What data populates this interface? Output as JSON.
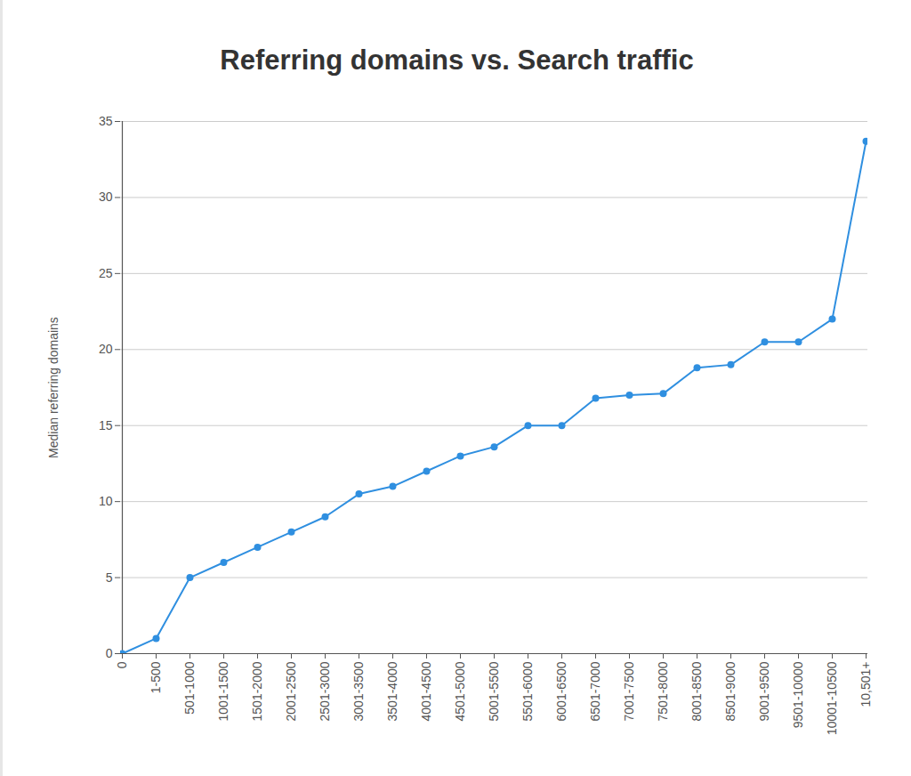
{
  "chart_data": {
    "type": "line",
    "title": "Referring domains vs. Search traffic",
    "y_label": "Median referring domains",
    "categories": [
      "0",
      "1-500",
      "501-1000",
      "1001-1500",
      "1501-2000",
      "2001-2500",
      "2501-3000",
      "3001-3500",
      "3501-4000",
      "4001-4500",
      "4501-5000",
      "5001-5500",
      "5501-6000",
      "6001-6500",
      "6501-7000",
      "7001-7500",
      "7501-8000",
      "8001-8500",
      "8501-9000",
      "9001-9500",
      "9501-10000",
      "10001-10500",
      "10,501+"
    ],
    "values": [
      0,
      1,
      5,
      6,
      7,
      8,
      9,
      10.5,
      11,
      12,
      13,
      13.6,
      15,
      15,
      16.8,
      17,
      17.1,
      18.8,
      19,
      20.5,
      20.5,
      22,
      33.7
    ],
    "color": "#2f8fe0",
    "marker": "circle",
    "ylim": [
      0,
      35
    ],
    "yticks": [
      0,
      5,
      10,
      15,
      20,
      25,
      30,
      35
    ],
    "grid": true
  }
}
